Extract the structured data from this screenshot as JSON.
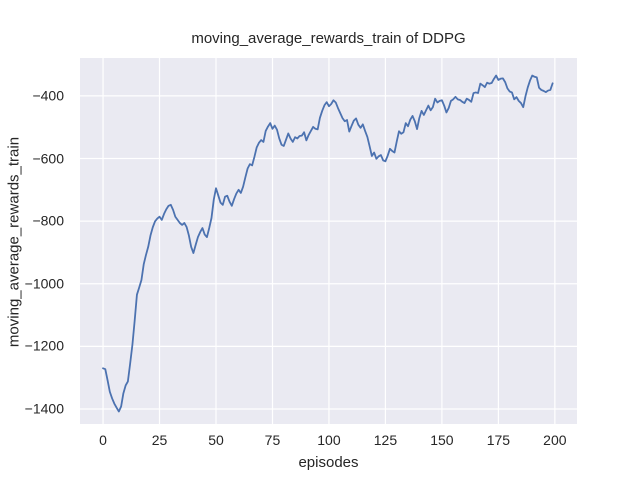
{
  "chart_data": {
    "type": "line",
    "title": "moving_average_rewards_train of DDPG",
    "xlabel": "episodes",
    "ylabel": "moving_average_rewards_train",
    "x_ticks": [
      0,
      25,
      50,
      75,
      100,
      125,
      150,
      175,
      200
    ],
    "y_ticks": [
      -400,
      -600,
      -800,
      -1000,
      -1200,
      -1400
    ],
    "xlim": [
      -10.2,
      209.8
    ],
    "ylim": [
      -1448,
      -279
    ],
    "grid": true,
    "legend": "none",
    "style": {
      "plot_background": "#eaeaf2",
      "grid_color": "#ffffff",
      "line_color": "#4c72b0",
      "text_color": "#262626",
      "figure_background": "#ffffff",
      "line_width": 1.8
    },
    "series": [
      {
        "name": "moving_average_rewards_train",
        "x_start": 0,
        "x_step": 1,
        "y": [
          -1270,
          -1273,
          -1308,
          -1345,
          -1366,
          -1383,
          -1396,
          -1408,
          -1392,
          -1350,
          -1325,
          -1312,
          -1255,
          -1195,
          -1118,
          -1035,
          -1012,
          -988,
          -938,
          -908,
          -882,
          -846,
          -820,
          -801,
          -792,
          -786,
          -796,
          -777,
          -762,
          -751,
          -748,
          -764,
          -786,
          -796,
          -806,
          -812,
          -806,
          -819,
          -846,
          -882,
          -902,
          -876,
          -851,
          -835,
          -822,
          -843,
          -851,
          -822,
          -790,
          -732,
          -695,
          -718,
          -741,
          -748,
          -722,
          -719,
          -738,
          -751,
          -730,
          -712,
          -700,
          -710,
          -690,
          -660,
          -632,
          -618,
          -622,
          -595,
          -565,
          -550,
          -541,
          -547,
          -512,
          -498,
          -487,
          -505,
          -495,
          -508,
          -536,
          -556,
          -560,
          -540,
          -520,
          -536,
          -547,
          -532,
          -536,
          -528,
          -527,
          -516,
          -542,
          -525,
          -512,
          -499,
          -505,
          -507,
          -470,
          -448,
          -430,
          -420,
          -433,
          -426,
          -414,
          -421,
          -439,
          -455,
          -471,
          -481,
          -477,
          -514,
          -496,
          -479,
          -472,
          -492,
          -502,
          -491,
          -512,
          -531,
          -561,
          -592,
          -581,
          -601,
          -593,
          -589,
          -606,
          -609,
          -591,
          -569,
          -576,
          -581,
          -546,
          -513,
          -521,
          -516,
          -487,
          -497,
          -476,
          -464,
          -481,
          -506,
          -471,
          -448,
          -461,
          -446,
          -431,
          -446,
          -436,
          -409,
          -421,
          -416,
          -414,
          -431,
          -453,
          -439,
          -416,
          -411,
          -403,
          -411,
          -413,
          -419,
          -423,
          -409,
          -413,
          -419,
          -391,
          -389,
          -391,
          -361,
          -366,
          -372,
          -358,
          -361,
          -359,
          -346,
          -335,
          -349,
          -345,
          -344,
          -356,
          -376,
          -386,
          -389,
          -411,
          -404,
          -416,
          -423,
          -436,
          -401,
          -373,
          -351,
          -335,
          -339,
          -341,
          -374,
          -381,
          -384,
          -388,
          -383,
          -381,
          -360
        ]
      }
    ]
  }
}
